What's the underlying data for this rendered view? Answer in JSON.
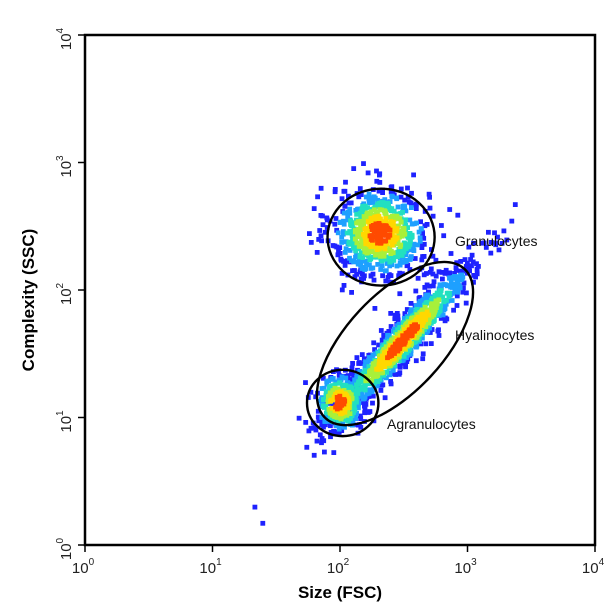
{
  "chart_data": {
    "type": "scatter",
    "xlabel": "Size (FSC)",
    "ylabel": "Complexity (SSC)",
    "xscale": "log",
    "yscale": "log",
    "xlim": [
      1,
      10000
    ],
    "ylim": [
      1,
      10000
    ],
    "x_ticks": [
      1,
      10,
      100,
      1000,
      10000
    ],
    "y_ticks": [
      1,
      10,
      100,
      1000,
      10000
    ],
    "grid": false,
    "legend": "none",
    "density_colormap": [
      "#1e22ff",
      "#1ea0ff",
      "#22e0c0",
      "#a8f03a",
      "#ffd800",
      "#ff4a00"
    ],
    "populations": [
      {
        "name": "Granulocytes",
        "center": [
          205,
          280
        ],
        "spread": [
          0.19,
          0.18
        ],
        "count": 720,
        "gate": {
          "center": [
            210,
            260
          ],
          "semi_axes_decades": [
            0.42,
            0.38
          ],
          "angle_deg": 0
        }
      },
      {
        "name": "Hyalinocytes",
        "center": [
          310,
          40
        ],
        "spread": [
          0.28,
          0.1
        ],
        "tilt_slope": 1.05,
        "count": 1050,
        "gate": {
          "center": [
            270,
            38
          ],
          "semi_axes_decades": [
            0.8,
            0.38
          ],
          "angle_deg": 47
        }
      },
      {
        "name": "Agranulocytes",
        "center": [
          100,
          13
        ],
        "spread": [
          0.1,
          0.12
        ],
        "count": 320,
        "gate": {
          "center": [
            105,
            13
          ],
          "semi_axes_decades": [
            0.28,
            0.26
          ],
          "angle_deg": 0
        }
      }
    ]
  }
}
